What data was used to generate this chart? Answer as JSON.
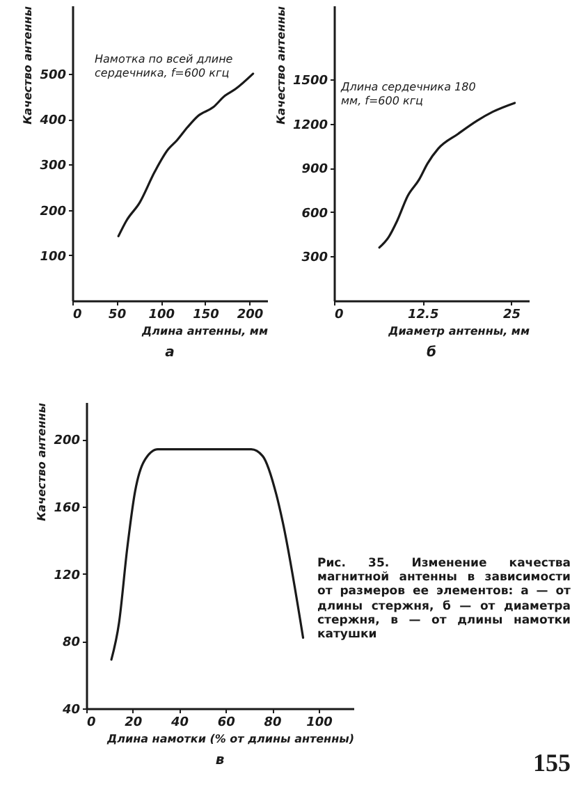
{
  "chart_data": [
    {
      "type": "line",
      "title": "а",
      "xlabel": "Длина антенны, мм",
      "ylabel": "Качество антенны",
      "annotations": [
        "Намотка по всей длине сердечника, f=600 кгц"
      ],
      "x": [
        52,
        61,
        76,
        93,
        108,
        118,
        130,
        142,
        159,
        172,
        184,
        204
      ],
      "series": [
        {
          "color": "#1a1a1a",
          "values": [
            142,
            176,
            216,
            284,
            333,
            353,
            382,
            407,
            426,
            451,
            466,
            500
          ]
        }
      ],
      "xlim": [
        0,
        220
      ],
      "xticks": [
        0,
        50,
        100,
        150,
        200
      ],
      "ylim": [
        0,
        650
      ],
      "yticks": [
        100,
        200,
        300,
        400,
        500
      ],
      "grid": false,
      "marker": "none",
      "line_style": "solid"
    },
    {
      "type": "line",
      "title": "б",
      "xlabel": "Диаметр антенны, мм",
      "ylabel": "Качество антенны",
      "annotations": [
        "Длина сердечника 180 мм, f=600 кгц"
      ],
      "x": [
        6.4,
        7.7,
        8.9,
        10.4,
        12.0,
        13.2,
        14.7,
        17.5,
        20.2,
        22.4,
        25.5
      ],
      "series": [
        {
          "color": "#1a1a1a",
          "values": [
            360,
            430,
            540,
            710,
            820,
            930,
            1030,
            1130,
            1220,
            1280,
            1340
          ]
        }
      ],
      "xlim": [
        0,
        27.5
      ],
      "xticks": [
        0,
        12.5,
        25
      ],
      "ylim": [
        0,
        2000
      ],
      "yticks": [
        300,
        600,
        900,
        1200,
        1500
      ],
      "grid": false,
      "marker": "none",
      "line_style": "solid"
    },
    {
      "type": "line",
      "title": "в",
      "xlabel": "Длина намотки (% от длины антенны)",
      "ylabel": "Качество антенны",
      "annotations": [
        "Рис. 35. Изменение качества магнитной антенны в зависимости от размеров ее элементов: а — от длины стержня, б — от диаметра стержня, в — от длины намотки катушки",
        "155"
      ],
      "x": [
        10.8,
        14.1,
        17.6,
        21,
        24.9,
        30.8,
        71,
        75.9,
        81.8,
        84.5,
        93.3
      ],
      "series": [
        {
          "color": "#1a1a1a",
          "values": [
            69,
            91,
            135,
            169,
            187,
            194,
            194,
            190,
            167,
            151,
            82
          ]
        }
      ],
      "xlim": [
        0,
        115
      ],
      "xticks": [
        0,
        20,
        40,
        60,
        80,
        100
      ],
      "ylim": [
        40,
        222
      ],
      "yticks": [
        40,
        80,
        120,
        160,
        200
      ],
      "grid": false,
      "marker": "none",
      "line_style": "solid"
    }
  ]
}
